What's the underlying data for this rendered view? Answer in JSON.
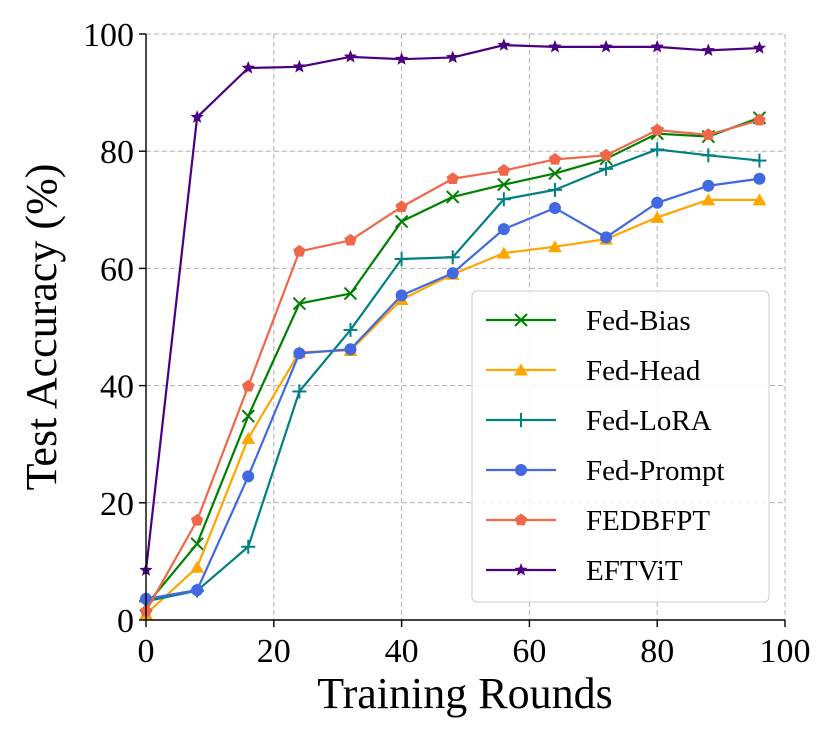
{
  "chart_data": {
    "type": "line",
    "title": "",
    "xlabel": "Training Rounds",
    "ylabel": "Test Accuracy (%)",
    "xlim": [
      0,
      100
    ],
    "ylim": [
      0,
      100
    ],
    "xticks": [
      0,
      20,
      40,
      60,
      80,
      100
    ],
    "yticks": [
      0,
      20,
      40,
      60,
      80,
      100
    ],
    "grid": true,
    "legend_position": "lower-right",
    "x": [
      0,
      8,
      16,
      24,
      32,
      40,
      48,
      56,
      64,
      72,
      80,
      88,
      96
    ],
    "series": [
      {
        "name": "Fed-Bias",
        "color": "#008000",
        "marker": "x",
        "values": [
          2.5,
          13.0,
          34.8,
          54.0,
          55.7,
          68.0,
          72.2,
          74.3,
          76.2,
          78.7,
          83.0,
          82.5,
          85.7
        ]
      },
      {
        "name": "Fed-Head",
        "color": "#FFA500",
        "marker": "triangle",
        "values": [
          1.0,
          9.0,
          31.0,
          45.7,
          46.0,
          54.7,
          59.0,
          62.6,
          63.7,
          65.0,
          68.7,
          71.7,
          71.7
        ]
      },
      {
        "name": "Fed-LoRA",
        "color": "#008080",
        "marker": "plus",
        "values": [
          3.2,
          5.0,
          12.5,
          39.0,
          49.5,
          61.6,
          61.9,
          71.8,
          73.4,
          77.0,
          80.3,
          79.3,
          78.4
        ]
      },
      {
        "name": "Fed-Prompt",
        "color": "#4169E1",
        "marker": "circle",
        "values": [
          3.6,
          5.1,
          24.5,
          45.5,
          46.2,
          55.4,
          59.2,
          66.7,
          70.3,
          65.3,
          71.2,
          74.1,
          75.3
        ]
      },
      {
        "name": "FEDBFPT",
        "color": "#F0684A",
        "marker": "pentagon",
        "values": [
          1.5,
          17.0,
          39.9,
          62.9,
          64.8,
          70.5,
          75.3,
          76.7,
          78.6,
          79.3,
          83.6,
          82.8,
          85.3
        ]
      },
      {
        "name": "EFTViT",
        "color": "#4B0082",
        "marker": "star",
        "values": [
          8.5,
          85.8,
          94.2,
          94.4,
          96.1,
          95.7,
          96.0,
          98.1,
          97.8,
          97.8,
          97.8,
          97.2,
          97.6
        ]
      }
    ]
  }
}
